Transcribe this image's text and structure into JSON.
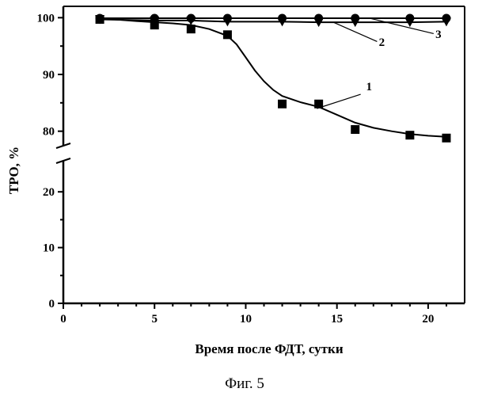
{
  "caption": "Фиг. 5",
  "chart_data": {
    "type": "scatter",
    "xlabel": "Время после ФДТ, сутки",
    "ylabel": "ТРО, %",
    "xlim": [
      0,
      22
    ],
    "x_ticks": [
      0,
      5,
      10,
      15,
      20
    ],
    "y_lower_range": [
      0,
      25
    ],
    "y_lower_ticks": [
      0,
      10,
      20
    ],
    "y_upper_range": [
      78,
      102
    ],
    "y_upper_ticks": [
      80,
      90,
      100
    ],
    "axis_break": "between 25 and 78",
    "series": [
      {
        "name": "1",
        "marker": "square",
        "x": [
          2,
          5,
          7,
          9,
          12,
          14,
          16,
          19,
          21
        ],
        "y": [
          99.7,
          98.7,
          98.0,
          97.0,
          84.8,
          84.8,
          80.3,
          79.3,
          78.8
        ],
        "fit_x": [
          2,
          4,
          6,
          7,
          8,
          9,
          9.5,
          10,
          10.5,
          11,
          11.5,
          12,
          13,
          14,
          15,
          16,
          17,
          18,
          19,
          20,
          21
        ],
        "fit_y": [
          99.9,
          99.4,
          99.0,
          98.7,
          98.0,
          96.8,
          95.3,
          93.0,
          90.7,
          88.8,
          87.3,
          86.2,
          85.1,
          84.3,
          82.9,
          81.5,
          80.6,
          80.0,
          79.5,
          79.2,
          79.0
        ]
      },
      {
        "name": "2",
        "marker": "triangle-down",
        "x": [
          2,
          5,
          7,
          9,
          12,
          14,
          16,
          19,
          21
        ],
        "y": [
          99.7,
          99.5,
          99.5,
          99.3,
          99.3,
          99.2,
          99.2,
          99.2,
          99.3
        ]
      },
      {
        "name": "3",
        "marker": "circle",
        "x": [
          2,
          5,
          7,
          9,
          12,
          14,
          16,
          19,
          21
        ],
        "y": [
          99.9,
          99.9,
          99.9,
          99.9,
          99.9,
          99.9,
          99.9,
          99.9,
          99.9
        ]
      }
    ]
  }
}
